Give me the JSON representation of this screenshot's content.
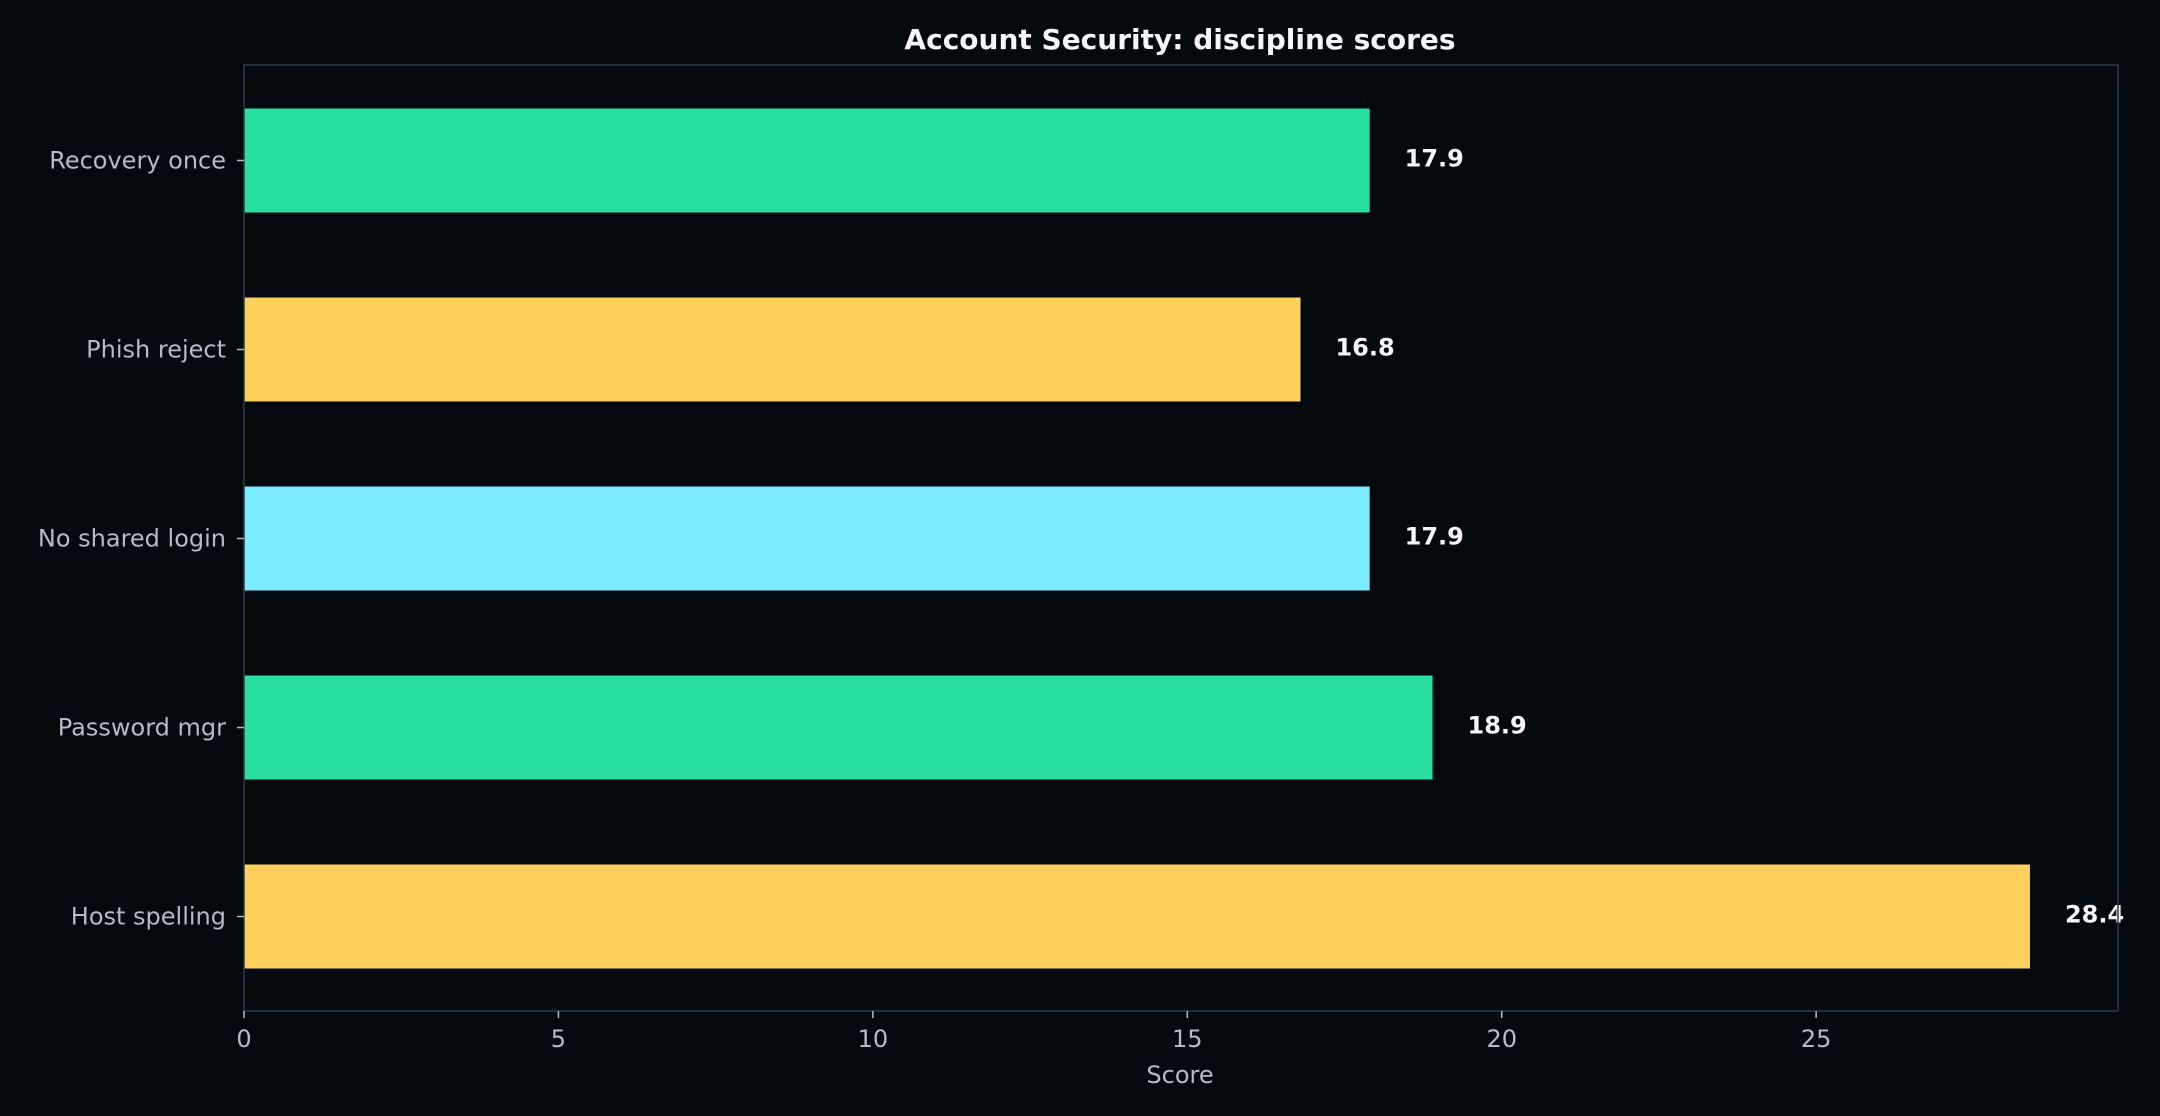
{
  "chart_data": {
    "type": "bar",
    "orientation": "horizontal",
    "title": "Account Security: discipline scores",
    "xlabel": "Score",
    "ylabel": "",
    "categories": [
      "Host spelling",
      "Password mgr",
      "No shared login",
      "Phish reject",
      "Recovery once"
    ],
    "values": [
      28.4,
      18.9,
      17.9,
      16.8,
      17.9
    ],
    "value_labels": [
      "28.4",
      "18.9",
      "17.9",
      "16.8",
      "17.9"
    ],
    "bar_colors": [
      "#ffd15c",
      "#28e0a0",
      "#7aecff",
      "#ffd15c",
      "#28e0a0"
    ],
    "xlim": [
      0,
      29.8
    ],
    "xticks": [
      0,
      5,
      10,
      15,
      20,
      25
    ],
    "xtick_labels": [
      "0",
      "5",
      "10",
      "15",
      "20",
      "25"
    ],
    "grid": false,
    "legend": "none",
    "background_color": "#03090c",
    "frame_color": "#2e3a4b",
    "text_color": "#f4f6f8",
    "tick_color": "#b5bcc4"
  }
}
